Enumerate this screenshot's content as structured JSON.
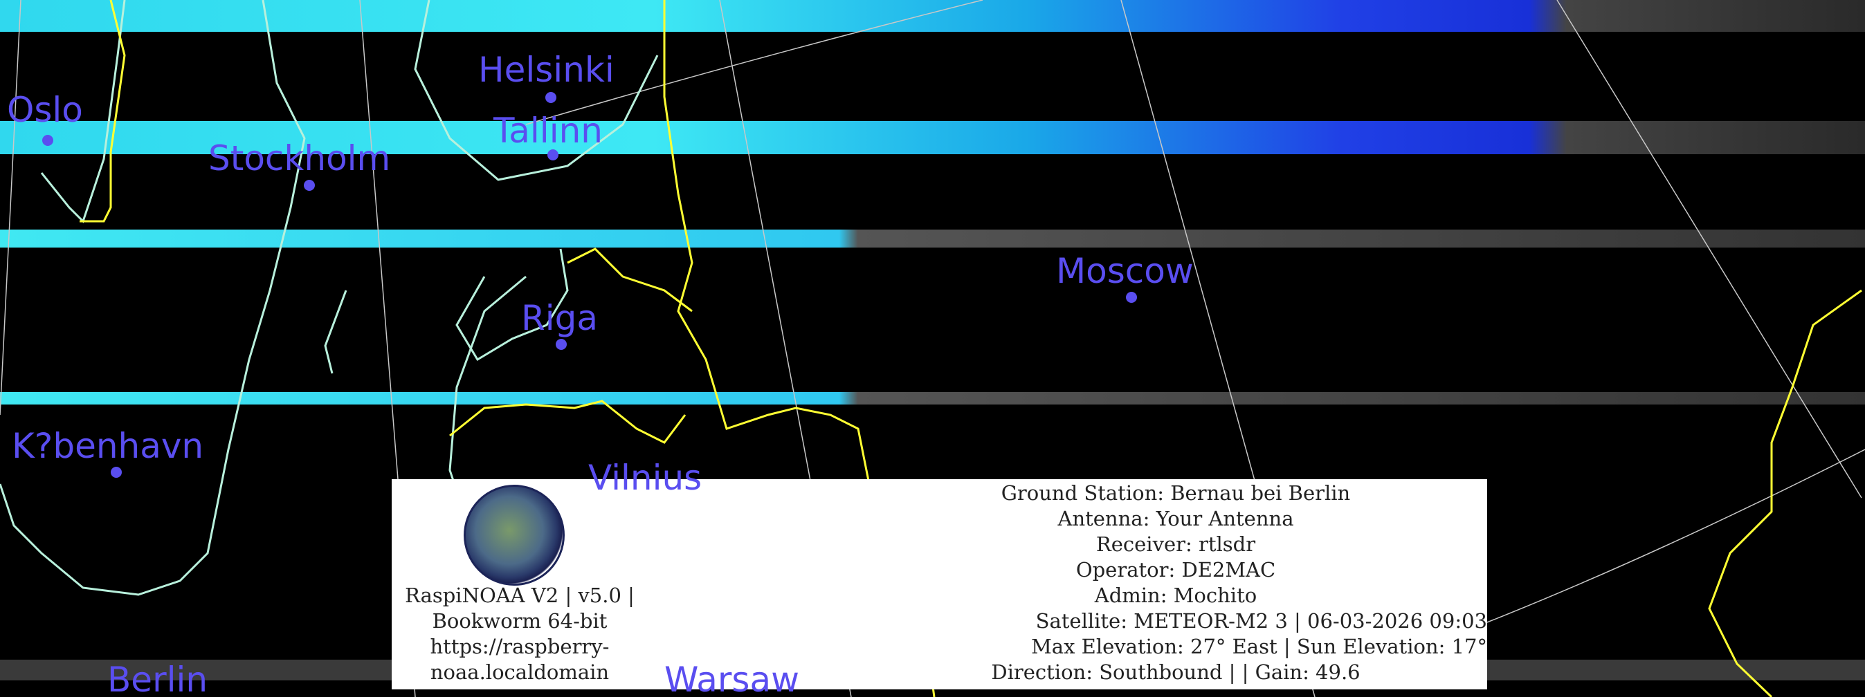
{
  "map": {
    "cities": [
      {
        "name": "Oslo"
      },
      {
        "name": "Stockholm"
      },
      {
        "name": "Helsinki"
      },
      {
        "name": "Tallinn"
      },
      {
        "name": "Riga"
      },
      {
        "name": "Moscow"
      },
      {
        "name": "K?benhavn"
      },
      {
        "name": "Vilnius"
      },
      {
        "name": "Berlin"
      },
      {
        "name": "Warsaw"
      }
    ],
    "colors": {
      "city": "#5a4ef0",
      "border": "#ffff33",
      "coast": "#b8f0dc",
      "cloud_cyan": "#33e0f0",
      "cloud_blue": "#2030e0"
    }
  },
  "info": {
    "logo_name": "raspinoaa-logo",
    "left_lines": [
      "RaspiNOAA V2 | v5.0 |",
      "Bookworm 64-bit",
      "https://raspberry-",
      "noaa.localdomain"
    ],
    "right_lines": [
      "Ground Station: Bernau bei Berlin",
      "Antenna: Your Antenna",
      "Receiver: rtlsdr",
      "Operator: DE2MAC",
      "Admin: Mochito",
      "Satellite: METEOR-M2 3 | 06-03-2026 09:03",
      "Max Elevation: 27° East | Sun Elevation: 17°",
      "Direction: Southbound | | Gain: 49.6"
    ]
  }
}
